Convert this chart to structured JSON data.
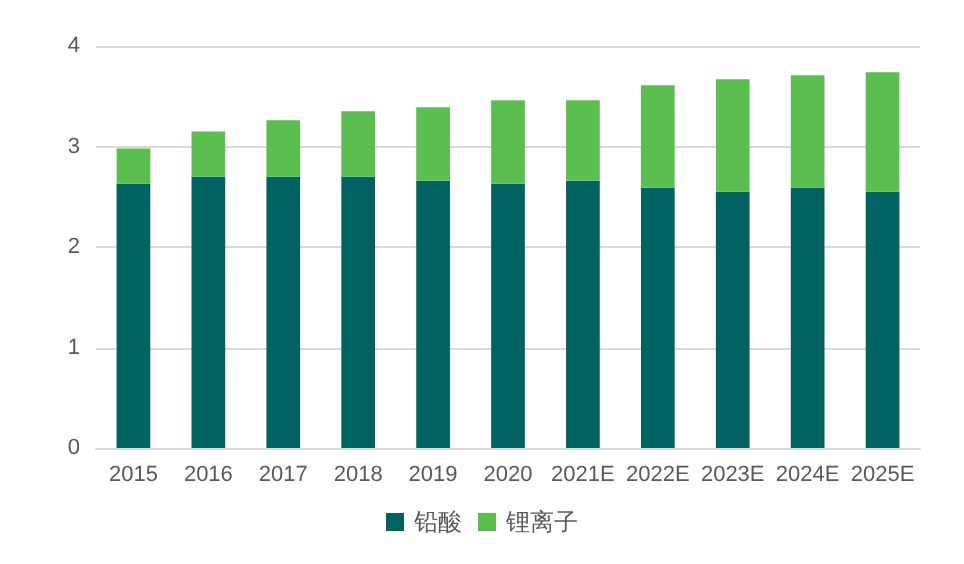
{
  "chart_data": {
    "type": "bar",
    "stacked": true,
    "categories": [
      "2015",
      "2016",
      "2017",
      "2018",
      "2019",
      "2020",
      "2021E",
      "2022E",
      "2023E",
      "2024E",
      "2025E"
    ],
    "series": [
      {
        "name": "铅酸",
        "color": "#006361",
        "values": [
          2.63,
          2.7,
          2.7,
          2.7,
          2.66,
          2.63,
          2.66,
          2.59,
          2.55,
          2.59,
          2.55
        ]
      },
      {
        "name": "锂离子",
        "color": "#5abf4f",
        "values": [
          0.35,
          0.45,
          0.56,
          0.65,
          0.73,
          0.83,
          0.8,
          1.02,
          1.12,
          1.12,
          1.19
        ]
      }
    ],
    "ylim": [
      0,
      4
    ],
    "yticks": [
      0,
      1,
      2,
      3,
      4
    ],
    "grid": "y",
    "legend": "bottom"
  }
}
